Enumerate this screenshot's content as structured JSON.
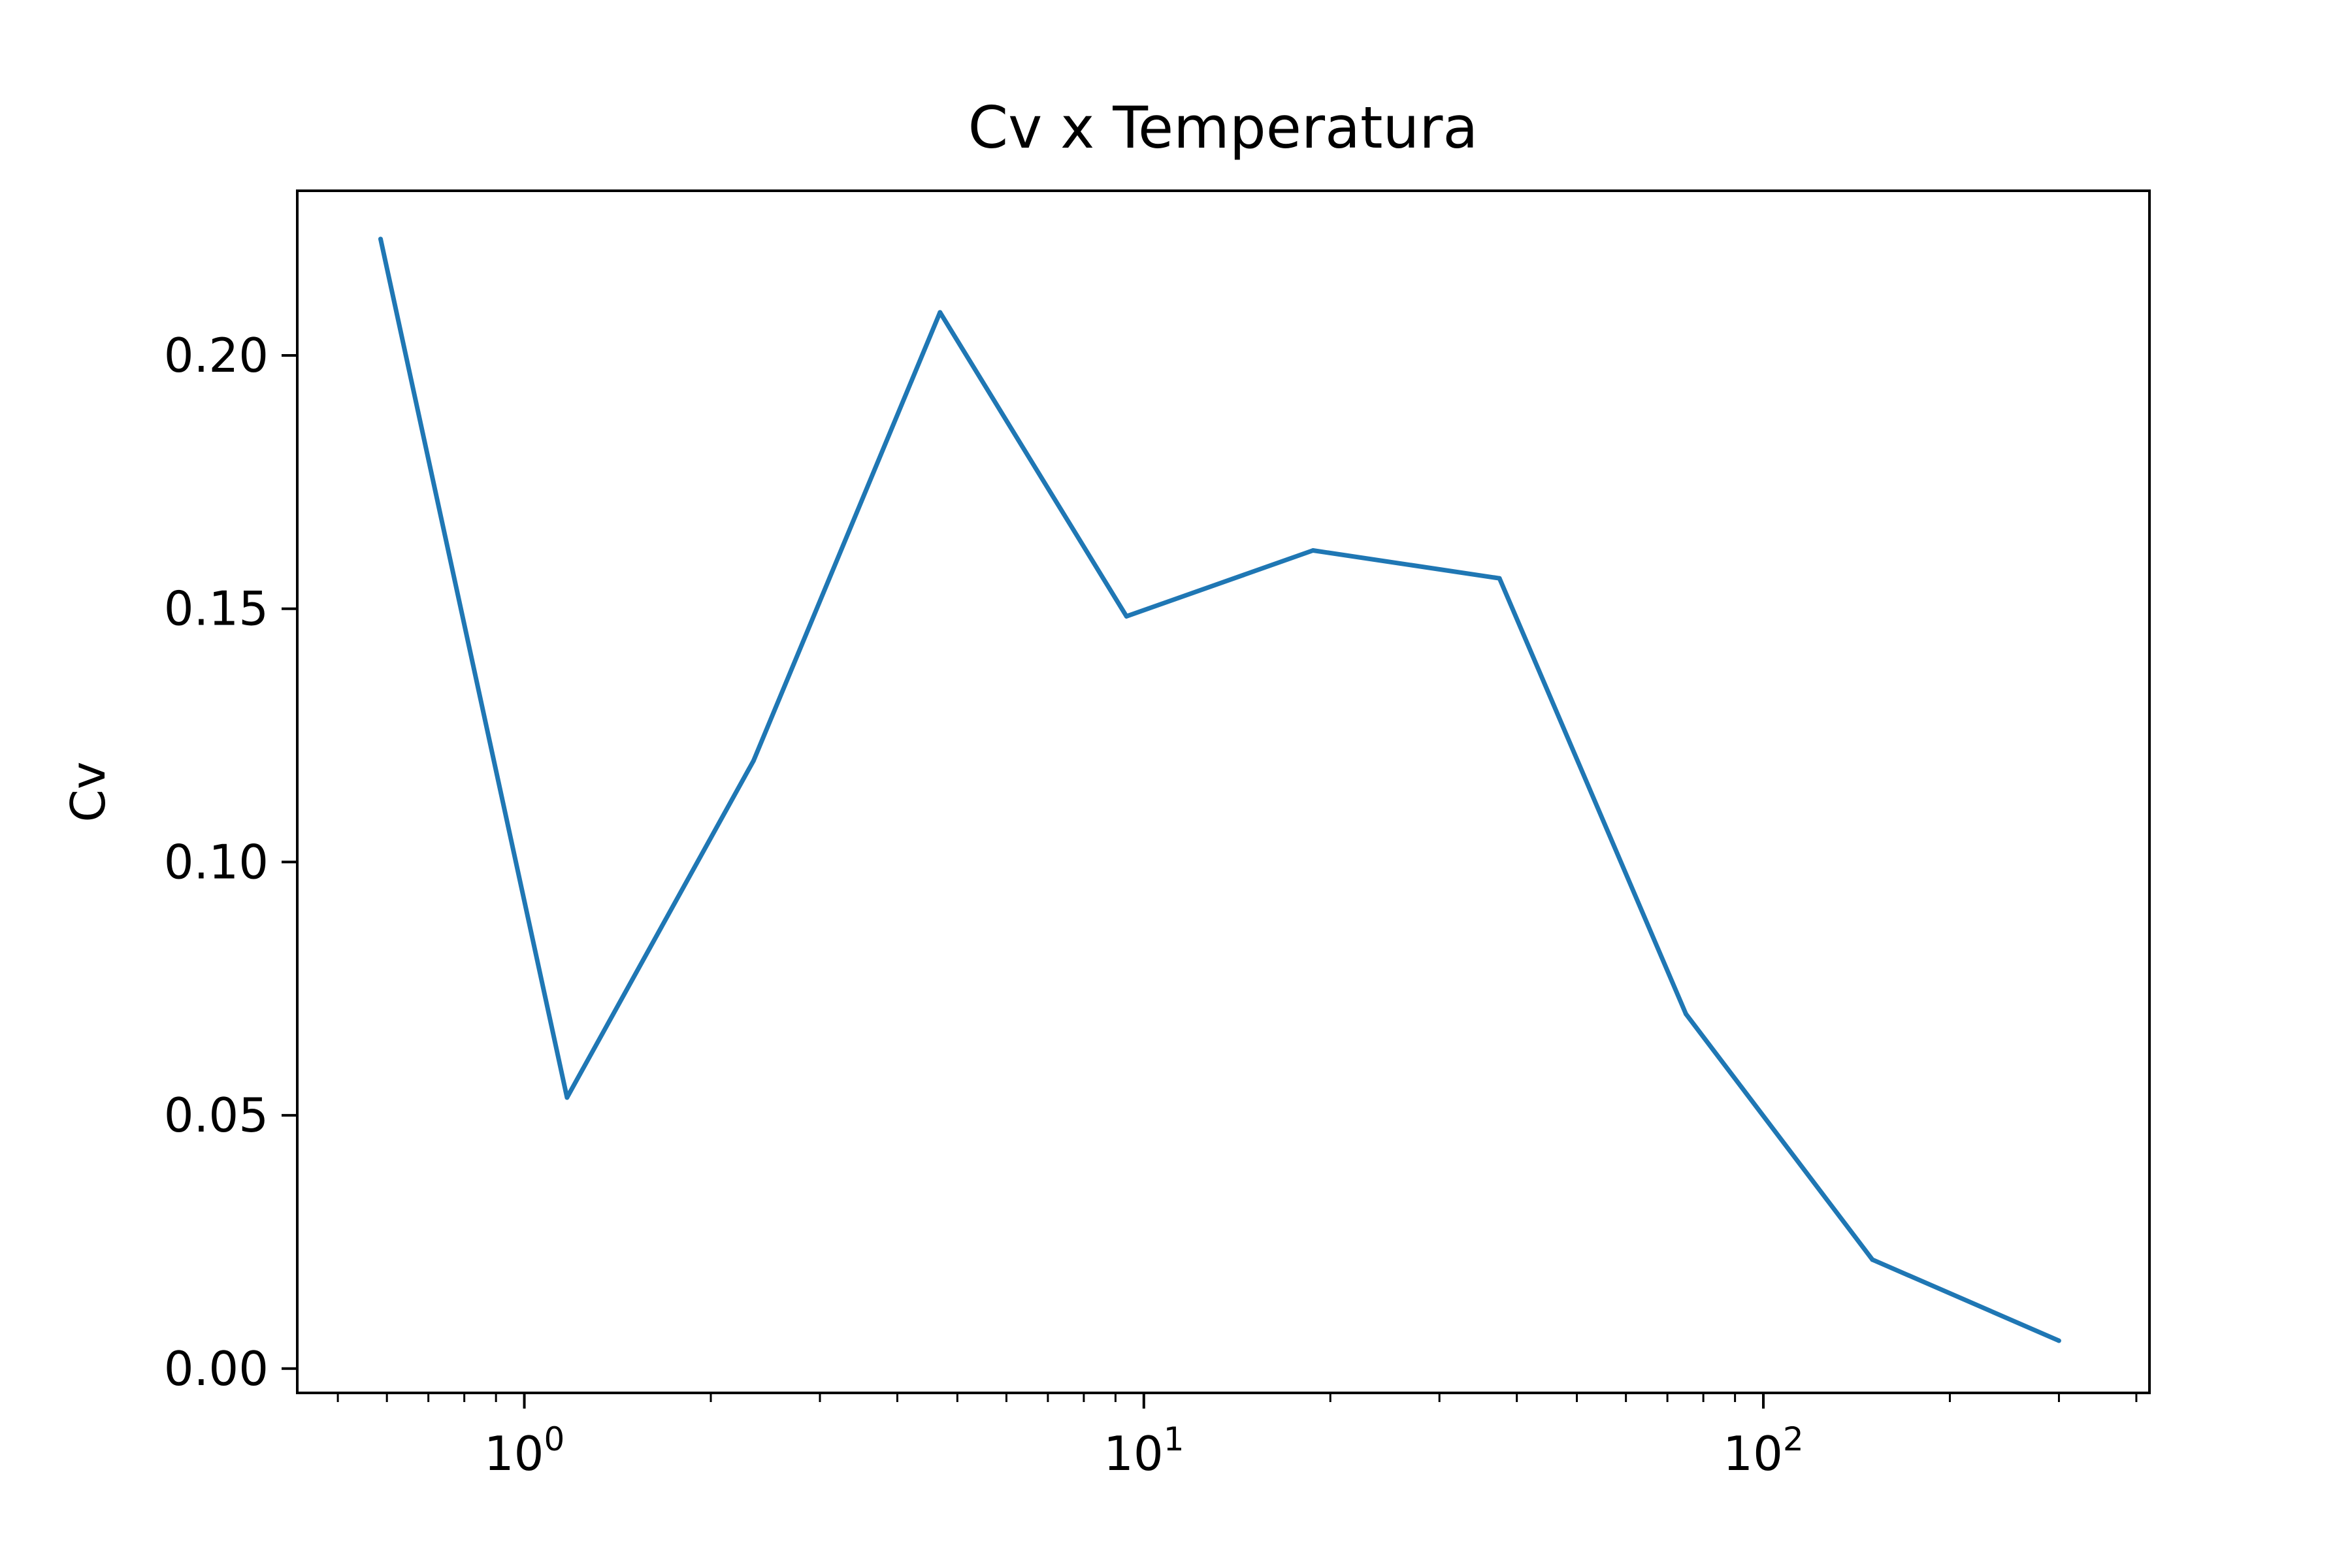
{
  "chart_data": {
    "type": "line",
    "title": "Cv x Temperatura",
    "xlabel": "",
    "ylabel": "Cv",
    "xscale": "log",
    "xlim": [
      0.43,
      420
    ],
    "ylim": [
      -0.0048,
      0.2325
    ],
    "grid": false,
    "x_ticks": [
      {
        "value": 1,
        "base": "10",
        "exp": "0"
      },
      {
        "value": 10,
        "base": "10",
        "exp": "1"
      },
      {
        "value": 100,
        "base": "10",
        "exp": "2"
      }
    ],
    "y_ticks": [
      {
        "value": 0.0,
        "label": "0.00"
      },
      {
        "value": 0.05,
        "label": "0.05"
      },
      {
        "value": 0.1,
        "label": "0.10"
      },
      {
        "value": 0.15,
        "label": "0.15"
      },
      {
        "value": 0.2,
        "label": "0.20"
      }
    ],
    "series": [
      {
        "color": "#1f77b4",
        "x": [
          0.586,
          1.172,
          2.344,
          4.688,
          9.375,
          18.75,
          37.5,
          75,
          150,
          300
        ],
        "y": [
          0.223,
          0.0535,
          0.12,
          0.2085,
          0.1485,
          0.1615,
          0.156,
          0.07,
          0.0215,
          0.0055
        ]
      }
    ]
  }
}
